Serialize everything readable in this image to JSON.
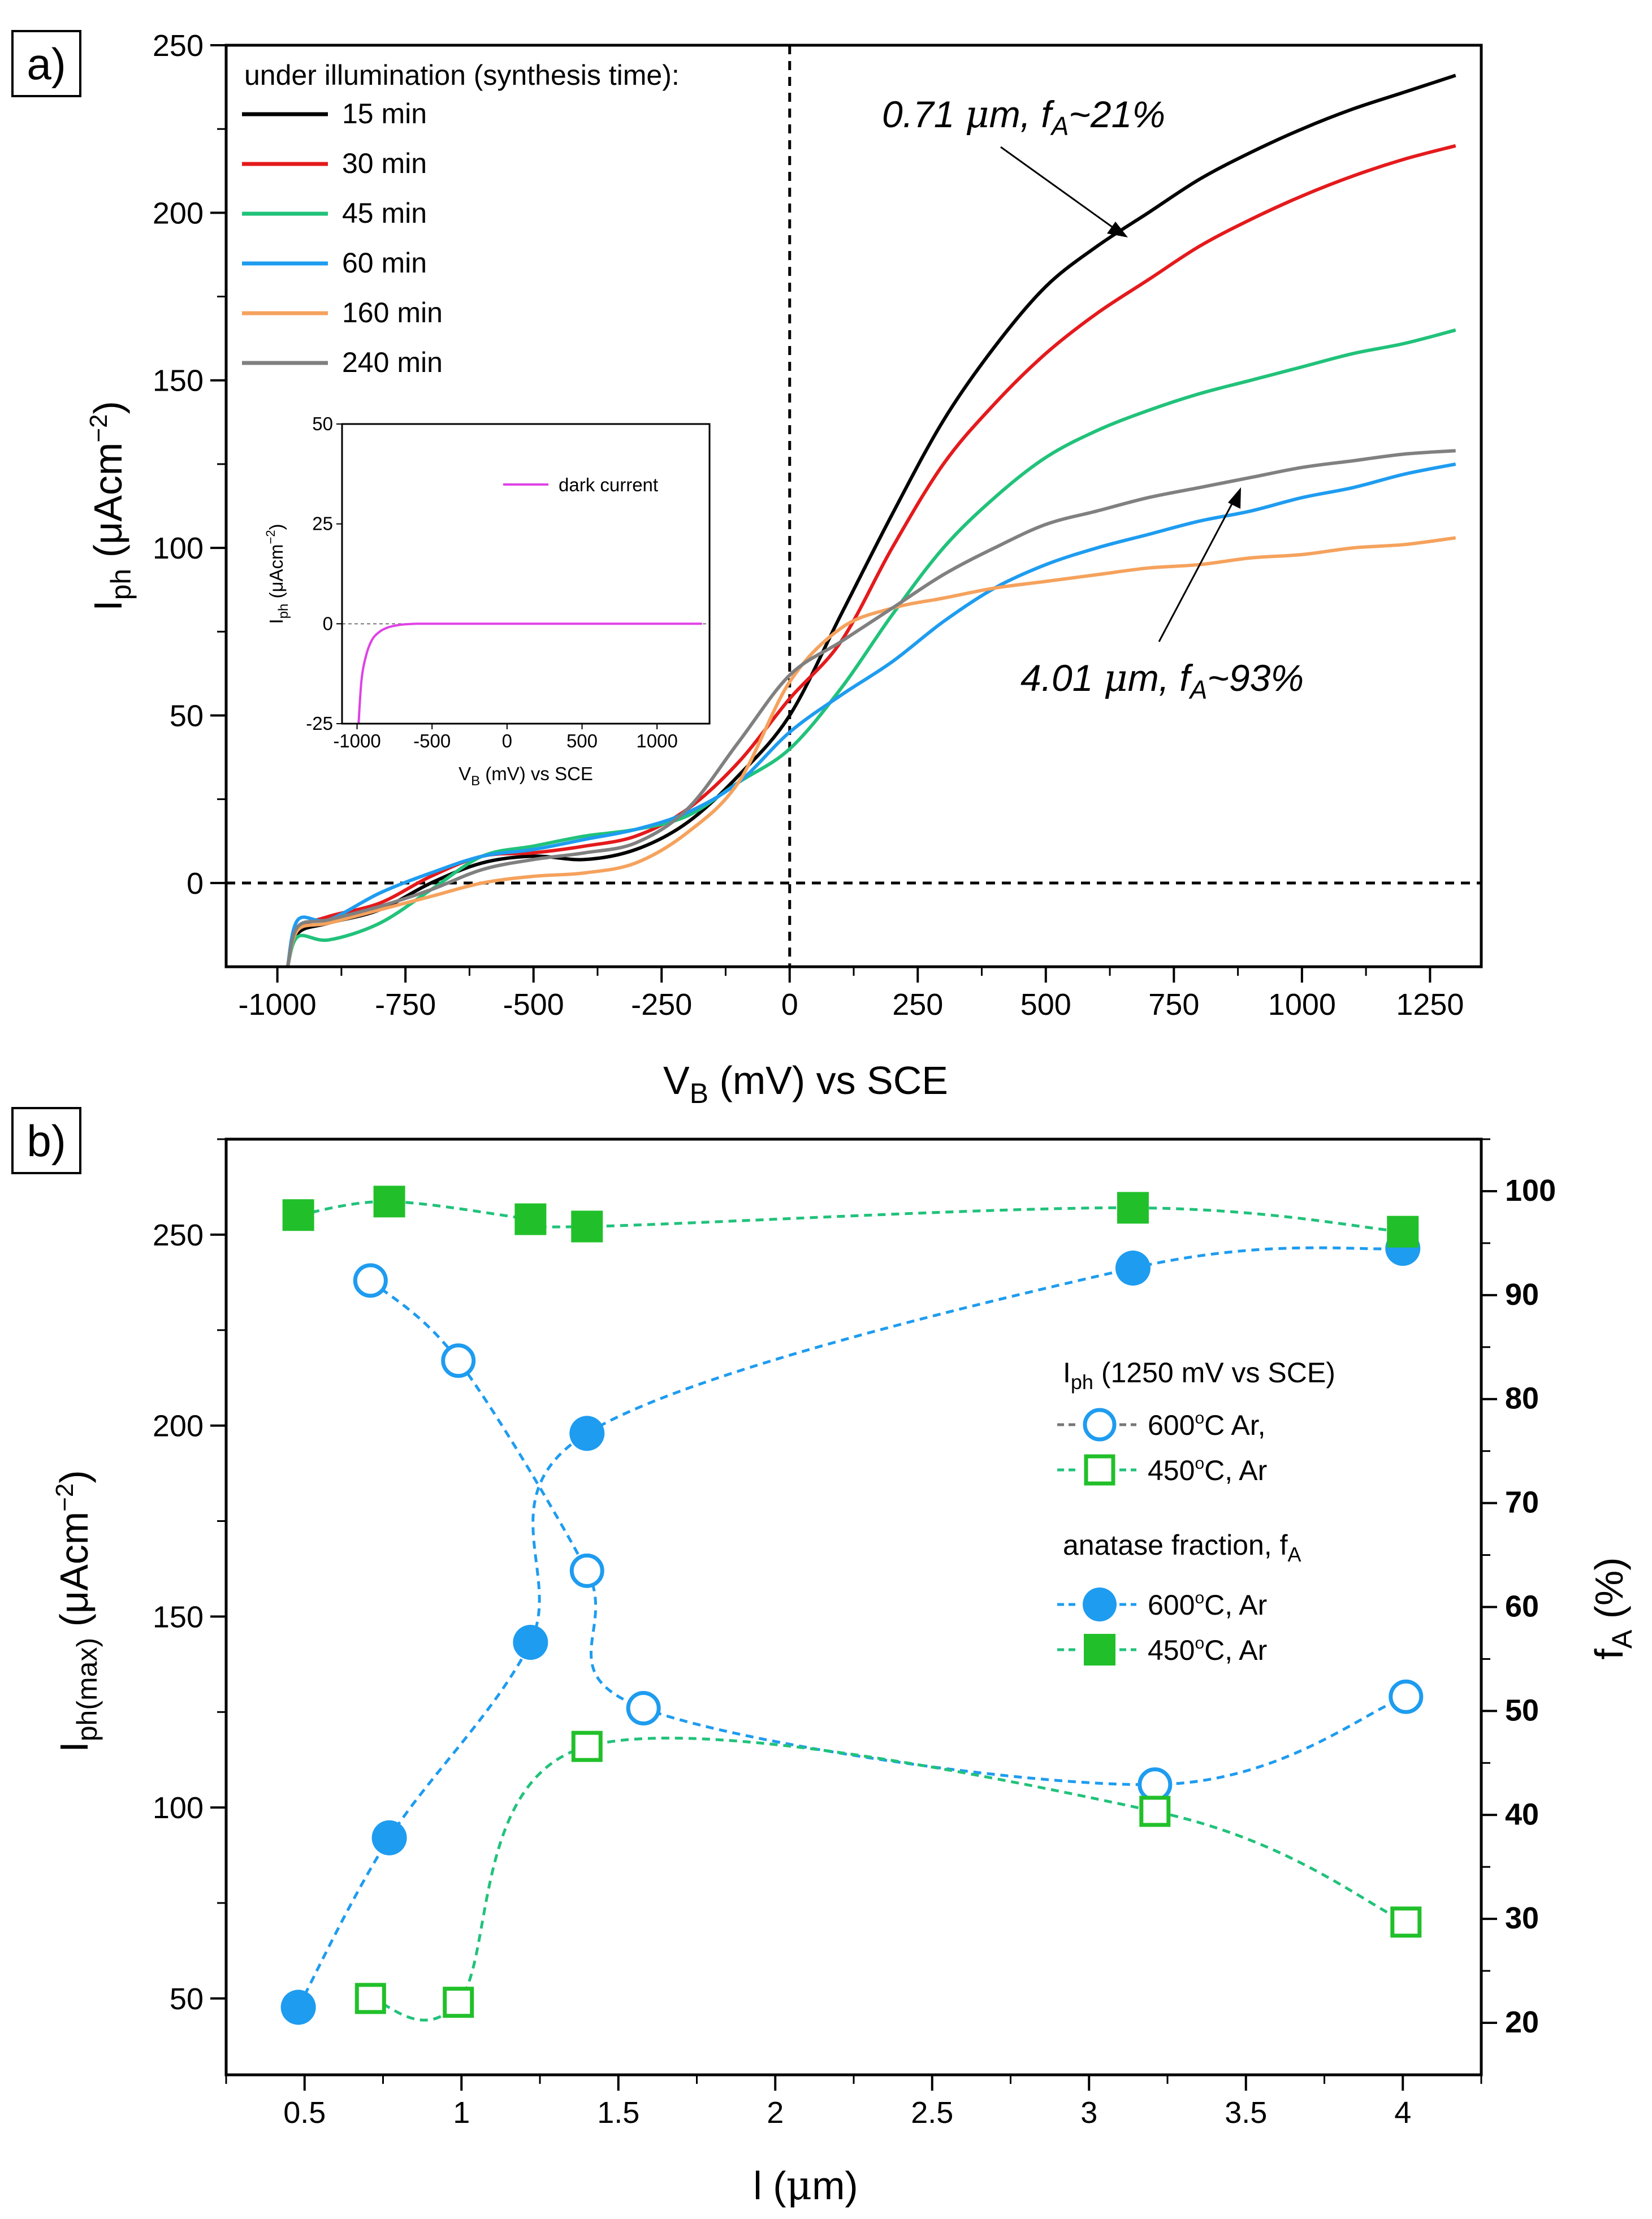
{
  "panel_a": {
    "label": "a)",
    "legend_title": "under illumination (synthesis time):",
    "annotation_top": "0.71 μm, f_A~21%",
    "annotation_bottom": "4.01 μm, f_A~93%"
  },
  "panel_b": {
    "label": "b)"
  },
  "chart_data": [
    {
      "id": "photocurrent_vs_bias",
      "type": "line",
      "xlabel": "V_B (mV) vs SCE",
      "ylabel": "I_ph (μAcm^-2)",
      "xlim": [
        -1100,
        1350
      ],
      "ylim": [
        -25,
        250
      ],
      "xticks": [
        -1000,
        -750,
        -500,
        -250,
        0,
        250,
        500,
        750,
        1000,
        1250
      ],
      "yticks": [
        0,
        50,
        100,
        150,
        200,
        250
      ],
      "reference_lines": {
        "x": 0,
        "y": 0,
        "style": "dashed"
      },
      "series": [
        {
          "name": "15 min",
          "color": "#000000",
          "x": [
            -980,
            -960,
            -900,
            -800,
            -700,
            -600,
            -500,
            -400,
            -300,
            -200,
            -100,
            0,
            100,
            200,
            300,
            400,
            500,
            600,
            700,
            800,
            900,
            1000,
            1100,
            1200,
            1300
          ],
          "y": [
            -25,
            -15,
            -12,
            -8,
            0,
            6,
            8,
            7,
            10,
            18,
            32,
            50,
            80,
            110,
            138,
            160,
            178,
            190,
            200,
            210,
            218,
            225,
            231,
            236,
            241
          ]
        },
        {
          "name": "30 min",
          "color": "#e41a1c",
          "x": [
            -980,
            -960,
            -900,
            -800,
            -700,
            -600,
            -500,
            -400,
            -300,
            -200,
            -100,
            0,
            100,
            200,
            300,
            400,
            500,
            600,
            700,
            800,
            900,
            1000,
            1100,
            1200,
            1300
          ],
          "y": [
            -25,
            -14,
            -10,
            -6,
            2,
            8,
            9,
            11,
            14,
            22,
            36,
            55,
            72,
            100,
            125,
            143,
            158,
            170,
            180,
            190,
            198,
            205,
            211,
            216,
            220
          ]
        },
        {
          "name": "45 min",
          "color": "#21c27a",
          "x": [
            -980,
            -960,
            -900,
            -800,
            -700,
            -600,
            -500,
            -400,
            -300,
            -200,
            -100,
            0,
            100,
            200,
            300,
            400,
            500,
            600,
            700,
            800,
            900,
            1000,
            1100,
            1200,
            1300
          ],
          "y": [
            -25,
            -16,
            -17,
            -12,
            -2,
            8,
            11,
            14,
            16,
            20,
            30,
            40,
            58,
            80,
            100,
            115,
            127,
            135,
            141,
            146,
            150,
            154,
            158,
            161,
            165
          ]
        },
        {
          "name": "60 min",
          "color": "#1e9cf0",
          "x": [
            -980,
            -960,
            -900,
            -800,
            -700,
            -600,
            -500,
            -400,
            -300,
            -200,
            -100,
            0,
            100,
            200,
            300,
            400,
            500,
            600,
            700,
            800,
            900,
            1000,
            1100,
            1200,
            1300
          ],
          "y": [
            -25,
            -11,
            -11,
            -3,
            3,
            8,
            10,
            13,
            16,
            21,
            30,
            45,
            56,
            66,
            78,
            88,
            95,
            100,
            104,
            108,
            111,
            115,
            118,
            122,
            125
          ]
        },
        {
          "name": "160 min",
          "color": "#f5a25d",
          "x": [
            -980,
            -960,
            -900,
            -800,
            -700,
            -600,
            -500,
            -400,
            -300,
            -200,
            -100,
            0,
            100,
            200,
            300,
            400,
            500,
            600,
            700,
            800,
            900,
            1000,
            1100,
            1200,
            1300
          ],
          "y": [
            -25,
            -14,
            -12,
            -8,
            -4,
            0,
            2,
            3,
            6,
            15,
            30,
            60,
            76,
            82,
            85,
            88,
            90,
            92,
            94,
            95,
            97,
            98,
            100,
            101,
            103
          ]
        },
        {
          "name": "240 min",
          "color": "#808080",
          "x": [
            -980,
            -960,
            -900,
            -800,
            -700,
            -600,
            -500,
            -400,
            -300,
            -200,
            -100,
            0,
            100,
            200,
            300,
            400,
            500,
            600,
            700,
            800,
            900,
            1000,
            1100,
            1200,
            1300
          ],
          "y": [
            -25,
            -13,
            -11,
            -7,
            -2,
            4,
            7,
            9,
            12,
            22,
            42,
            62,
            72,
            82,
            92,
            100,
            107,
            111,
            115,
            118,
            121,
            124,
            126,
            128,
            129
          ]
        }
      ]
    },
    {
      "id": "dark_current_inset",
      "type": "line",
      "xlabel": "V_B (mV) vs SCE",
      "ylabel": "I_ph (μAcm^-2)",
      "xlim": [
        -1100,
        1350
      ],
      "ylim": [
        -25,
        50
      ],
      "xticks": [
        -1000,
        -500,
        0,
        500,
        1000
      ],
      "yticks": [
        -25,
        0,
        25,
        50
      ],
      "series": [
        {
          "name": "dark current",
          "color": "#e040e6",
          "x": [
            -990,
            -970,
            -940,
            -900,
            -850,
            -800,
            -750,
            -700,
            -600,
            -500,
            0,
            500,
            1000,
            1300
          ],
          "y": [
            -25,
            -14,
            -8,
            -4,
            -2,
            -1,
            -0.5,
            -0.2,
            0,
            0,
            0,
            0,
            0,
            0
          ]
        }
      ]
    },
    {
      "id": "max_photocurrent_and_anatase_vs_length",
      "type": "scatter",
      "xlabel": "l (μm)",
      "ylabel": "I_ph(max) (μAcm^-2)",
      "ylabel_right": "f_A (%)",
      "xlim": [
        0.25,
        4.25
      ],
      "ylim": [
        30,
        275
      ],
      "ylim_right": [
        15,
        105
      ],
      "xticks": [
        0.5,
        1,
        1.5,
        2,
        2.5,
        3,
        3.5,
        4
      ],
      "yticks": [
        50,
        100,
        150,
        200,
        250
      ],
      "yticks_right": [
        20,
        30,
        40,
        50,
        60,
        70,
        80,
        90,
        100
      ],
      "legend_groups": [
        {
          "title": "I_ph (1250 mV vs SCE)",
          "entries": [
            "600°C Ar,",
            "450°C, Ar"
          ]
        },
        {
          "title": "anatase fraction, f_A",
          "entries": [
            "600°C, Ar",
            "450°C, Ar"
          ]
        }
      ],
      "series": [
        {
          "name": "I_ph 600°C Ar",
          "axis": "left",
          "marker": "open-circle",
          "color": "#1e9cf0",
          "x": [
            0.71,
            0.99,
            1.4,
            1.58,
            3.21,
            4.01
          ],
          "y": [
            238,
            217,
            162,
            126,
            106,
            129
          ]
        },
        {
          "name": "I_ph 450°C Ar",
          "axis": "left",
          "marker": "open-square",
          "color": "#21c02a",
          "x": [
            0.71,
            0.99,
            1.4,
            3.21,
            4.01
          ],
          "y": [
            50,
            49,
            116,
            99,
            70
          ]
        },
        {
          "name": "f_A 600°C Ar",
          "axis": "right",
          "marker": "filled-circle",
          "color": "#1e9cf0",
          "x": [
            0.48,
            0.77,
            1.22,
            1.4,
            3.14,
            4.0
          ],
          "y": [
            21.5,
            37.8,
            56.6,
            76.7,
            92.6,
            94.5
          ]
        },
        {
          "name": "f_A 450°C Ar",
          "axis": "right",
          "marker": "filled-square",
          "color": "#21c02a",
          "x": [
            0.48,
            0.77,
            1.22,
            1.4,
            3.14,
            4.0
          ],
          "y": [
            97.7,
            99.0,
            97.3,
            96.6,
            98.4,
            96.1
          ]
        }
      ]
    }
  ]
}
